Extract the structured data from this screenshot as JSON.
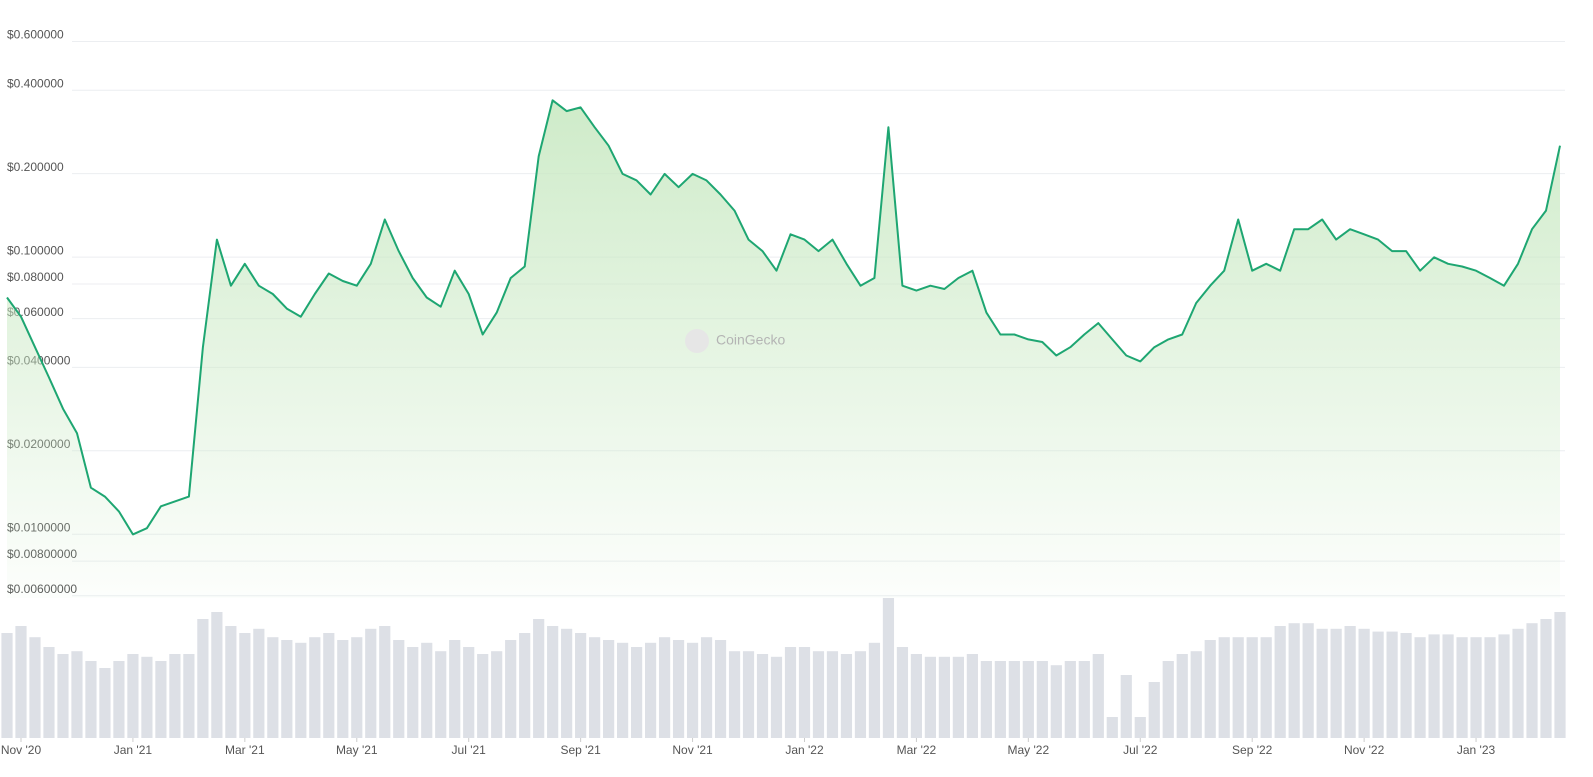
{
  "chart_data": {
    "type": "line",
    "log_scale": true,
    "grid": true,
    "color": "#1ea672",
    "watermark": "CoinGecko",
    "x": [
      "2020-10",
      "2020-11",
      "2020-11",
      "2020-11",
      "2020-11",
      "2020-12",
      "2020-12",
      "2020-12",
      "2020-12",
      "2021-01",
      "2021-01",
      "2021-01",
      "2021-01",
      "2021-02",
      "2021-02",
      "2021-02",
      "2021-02",
      "2021-03",
      "2021-03",
      "2021-03",
      "2021-03",
      "2021-04",
      "2021-04",
      "2021-04",
      "2021-04",
      "2021-05",
      "2021-05",
      "2021-05",
      "2021-05",
      "2021-06",
      "2021-06",
      "2021-06",
      "2021-06",
      "2021-07",
      "2021-07",
      "2021-07",
      "2021-07",
      "2021-08",
      "2021-08",
      "2021-08",
      "2021-08",
      "2021-09",
      "2021-09",
      "2021-09",
      "2021-09",
      "2021-10",
      "2021-10",
      "2021-10",
      "2021-10",
      "2021-11",
      "2021-11",
      "2021-11",
      "2021-11",
      "2021-12",
      "2021-12",
      "2021-12",
      "2021-12",
      "2022-01",
      "2022-01",
      "2022-01",
      "2022-01",
      "2022-02",
      "2022-02",
      "2022-02",
      "2022-02",
      "2022-03",
      "2022-03",
      "2022-03",
      "2022-03",
      "2022-04",
      "2022-04",
      "2022-04",
      "2022-04",
      "2022-05",
      "2022-05",
      "2022-05",
      "2022-05",
      "2022-06",
      "2022-06",
      "2022-06",
      "2022-06",
      "2022-07",
      "2022-07",
      "2022-07",
      "2022-07",
      "2022-08",
      "2022-08",
      "2022-08",
      "2022-08",
      "2022-09",
      "2022-09",
      "2022-09",
      "2022-09",
      "2022-10",
      "2022-10",
      "2022-10",
      "2022-10",
      "2022-11",
      "2022-11",
      "2022-11",
      "2022-11",
      "2022-12",
      "2022-12",
      "2022-12",
      "2022-12",
      "2023-01",
      "2023-01",
      "2023-01",
      "2023-01",
      "2023-02",
      "2023-02",
      "2023-02"
    ],
    "values": [
      0.068,
      0.058,
      0.045,
      0.035,
      0.027,
      0.022,
      0.014,
      0.013,
      0.0115,
      0.0095,
      0.01,
      0.012,
      0.0125,
      0.013,
      0.045,
      0.11,
      0.075,
      0.09,
      0.075,
      0.07,
      0.062,
      0.058,
      0.07,
      0.083,
      0.078,
      0.075,
      0.09,
      0.13,
      0.1,
      0.08,
      0.068,
      0.063,
      0.085,
      0.07,
      0.05,
      0.06,
      0.08,
      0.088,
      0.22,
      0.35,
      0.32,
      0.33,
      0.28,
      0.24,
      0.19,
      0.18,
      0.16,
      0.19,
      0.17,
      0.19,
      0.18,
      0.16,
      0.14,
      0.11,
      0.1,
      0.085,
      0.115,
      0.11,
      0.1,
      0.11,
      0.09,
      0.075,
      0.08,
      0.28,
      0.075,
      0.072,
      0.075,
      0.073,
      0.08,
      0.085,
      0.06,
      0.05,
      0.05,
      0.048,
      0.047,
      0.042,
      0.045,
      0.05,
      0.055,
      0.048,
      0.042,
      0.04,
      0.045,
      0.048,
      0.05,
      0.065,
      0.075,
      0.085,
      0.13,
      0.085,
      0.09,
      0.085,
      0.12,
      0.12,
      0.13,
      0.11,
      0.12,
      0.115,
      0.11,
      0.1,
      0.1,
      0.085,
      0.095,
      0.09,
      0.088,
      0.085,
      0.08,
      0.075,
      0.09,
      0.12,
      0.14,
      0.24
    ],
    "volume": {
      "ylim": [
        0,
        100
      ],
      "color": "#dde0e6",
      "values": [
        75,
        80,
        72,
        65,
        60,
        62,
        55,
        50,
        55,
        60,
        58,
        55,
        60,
        60,
        85,
        90,
        80,
        75,
        78,
        72,
        70,
        68,
        72,
        75,
        70,
        72,
        78,
        80,
        70,
        65,
        68,
        62,
        70,
        65,
        60,
        62,
        70,
        75,
        85,
        80,
        78,
        75,
        72,
        70,
        68,
        65,
        68,
        72,
        70,
        68,
        72,
        70,
        62,
        62,
        60,
        58,
        65,
        65,
        62,
        62,
        60,
        62,
        68,
        100,
        65,
        60,
        58,
        58,
        58,
        60,
        55,
        55,
        55,
        55,
        55,
        52,
        55,
        55,
        60,
        15,
        45,
        15,
        40,
        55,
        60,
        62,
        70,
        72,
        72,
        72,
        72,
        80,
        82,
        82,
        78,
        78,
        80,
        78,
        76,
        76,
        75,
        72,
        74,
        74,
        72,
        72,
        72,
        74,
        78,
        82,
        85,
        90
      ]
    },
    "ylim": [
      0.0056,
      0.66
    ],
    "yticks": [
      {
        "value": 0.6,
        "label": "$0.600000"
      },
      {
        "value": 0.4,
        "label": "$0.400000"
      },
      {
        "value": 0.2,
        "label": "$0.200000"
      },
      {
        "value": 0.1,
        "label": "$0.100000"
      },
      {
        "value": 0.08,
        "label": "$0.080000"
      },
      {
        "value": 0.06,
        "label": "$0.060000"
      },
      {
        "value": 0.04,
        "label": "$0.0400000"
      },
      {
        "value": 0.02,
        "label": "$0.0200000"
      },
      {
        "value": 0.01,
        "label": "$0.0100000"
      },
      {
        "value": 0.008,
        "label": "$0.00800000"
      },
      {
        "value": 0.006,
        "label": "$0.00600000"
      }
    ],
    "xticks": [
      {
        "value": 1,
        "label": "Nov '20"
      },
      {
        "value": 9,
        "label": "Jan '21"
      },
      {
        "value": 17,
        "label": "Mar '21"
      },
      {
        "value": 25,
        "label": "May '21"
      },
      {
        "value": 33,
        "label": "Jul '21"
      },
      {
        "value": 41,
        "label": "Sep '21"
      },
      {
        "value": 49,
        "label": "Nov '21"
      },
      {
        "value": 57,
        "label": "Jan '22"
      },
      {
        "value": 65,
        "label": "Mar '22"
      },
      {
        "value": 73,
        "label": "May '22"
      },
      {
        "value": 81,
        "label": "Jul '22"
      },
      {
        "value": 89,
        "label": "Sep '22"
      },
      {
        "value": 97,
        "label": "Nov '22"
      },
      {
        "value": 105,
        "label": "Jan '23"
      }
    ]
  }
}
